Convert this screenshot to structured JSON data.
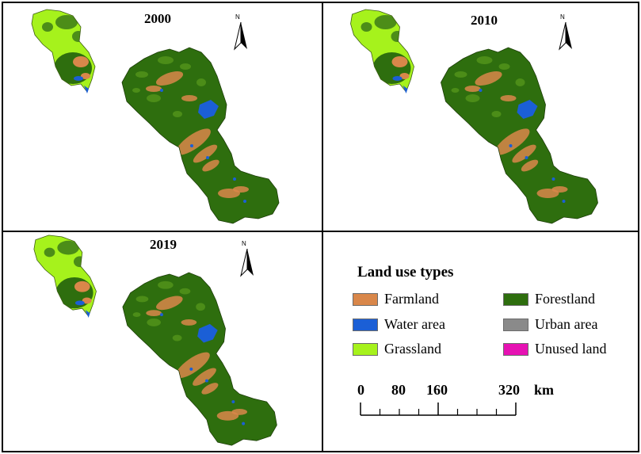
{
  "panels": [
    {
      "year": "2000"
    },
    {
      "year": "2010"
    },
    {
      "year": "2019"
    }
  ],
  "north_label": "N",
  "legend": {
    "title": "Land use types",
    "items": [
      {
        "label": "Farmland",
        "color": "#d9874a"
      },
      {
        "label": "Forestland",
        "color": "#2e6e0e"
      },
      {
        "label": "Water area",
        "color": "#1b5fd6"
      },
      {
        "label": "Urban area",
        "color": "#8a8a8a"
      },
      {
        "label": "Grassland",
        "color": "#a6f21c"
      },
      {
        "label": "Unused land",
        "color": "#e612b3"
      }
    ]
  },
  "scale_bar": {
    "ticks": [
      "0",
      "80",
      "160",
      "320"
    ],
    "unit": "km"
  },
  "colors": {
    "forest": "#2e6e0e",
    "forest_light": "#4c8d18",
    "farmland": "#d9874a",
    "water": "#1b5fd6",
    "grass": "#a6f21c"
  }
}
